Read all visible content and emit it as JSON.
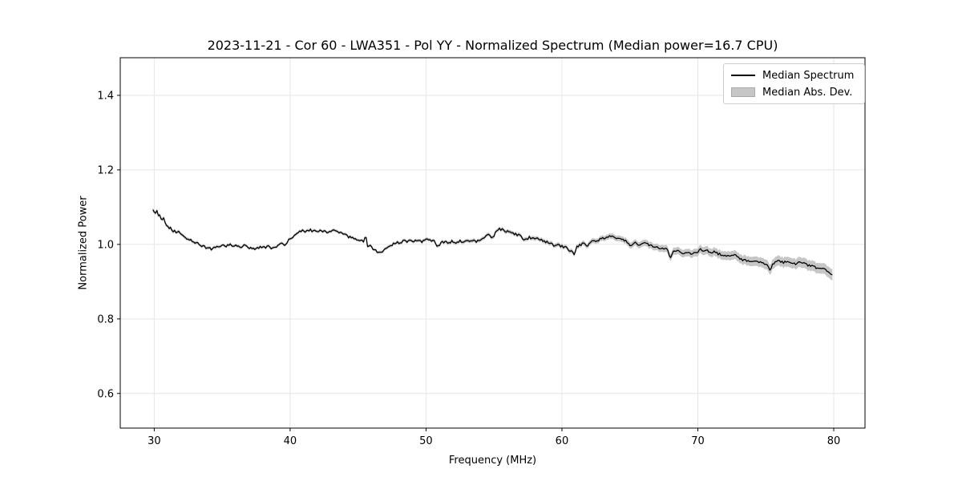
{
  "chart_data": {
    "type": "line",
    "title": "2023-11-21 - Cor 60 - LWA351 - Pol YY - Normalized Spectrum (Median power=16.7 CPU)",
    "xlabel": "Frequency (MHz)",
    "ylabel": "Normalized Power",
    "xlim": [
      27.5,
      82.3
    ],
    "ylim": [
      0.507,
      1.501
    ],
    "xticks": [
      30,
      40,
      50,
      60,
      70,
      80
    ],
    "yticks": [
      0.6,
      0.8,
      1.0,
      1.2,
      1.4
    ],
    "grid": true,
    "colors": {
      "line": "#000000",
      "band": "#c6c6c6",
      "grid": "#e6e6e6",
      "spine": "#000000",
      "tick": "#000000",
      "legend_border": "#cccccc"
    },
    "legend": {
      "position": "upper right",
      "entries": [
        {
          "label": "Median Spectrum",
          "type": "line",
          "color": "#000000"
        },
        {
          "label": "Median Abs. Dev.",
          "type": "patch",
          "color": "#c6c6c6"
        }
      ]
    },
    "noise": {
      "amplitude": 0.0032,
      "seed": 12345,
      "step_mhz": 0.1
    },
    "series": [
      {
        "name": "Median Spectrum",
        "type": "line",
        "points": [
          [
            29.9,
            1.09
          ],
          [
            29.95,
            1.097
          ],
          [
            30.0,
            1.088
          ],
          [
            30.05,
            1.095
          ],
          [
            30.1,
            1.084
          ],
          [
            30.2,
            1.089
          ],
          [
            30.3,
            1.077
          ],
          [
            30.4,
            1.08
          ],
          [
            30.5,
            1.071
          ],
          [
            30.6,
            1.065
          ],
          [
            30.7,
            1.068
          ],
          [
            30.8,
            1.057
          ],
          [
            30.9,
            1.051
          ],
          [
            31.0,
            1.046
          ],
          [
            31.1,
            1.04
          ],
          [
            31.2,
            1.043
          ],
          [
            31.35,
            1.034
          ],
          [
            31.5,
            1.038
          ],
          [
            31.65,
            1.03
          ],
          [
            31.8,
            1.033
          ],
          [
            32.0,
            1.025
          ],
          [
            32.2,
            1.02
          ],
          [
            32.5,
            1.015
          ],
          [
            32.8,
            1.01
          ],
          [
            33.1,
            1.004
          ],
          [
            33.4,
            0.999
          ],
          [
            33.7,
            0.994
          ],
          [
            33.9,
            0.99
          ],
          [
            34.2,
            0.988
          ],
          [
            34.5,
            0.991
          ],
          [
            34.8,
            0.995
          ],
          [
            35.0,
            0.998
          ],
          [
            35.3,
            0.996
          ],
          [
            35.6,
            0.999
          ],
          [
            36.0,
            0.997
          ],
          [
            36.3,
            0.993
          ],
          [
            36.6,
            0.996
          ],
          [
            37.0,
            0.992
          ],
          [
            37.3,
            0.99
          ],
          [
            37.5,
            0.987
          ],
          [
            37.8,
            0.993
          ],
          [
            38.1,
            0.991
          ],
          [
            38.4,
            0.994
          ],
          [
            38.7,
            0.99
          ],
          [
            39.0,
            0.992
          ],
          [
            39.2,
            0.998
          ],
          [
            39.45,
            1.002
          ],
          [
            39.6,
            0.998
          ],
          [
            39.8,
            1.007
          ],
          [
            40.0,
            1.015
          ],
          [
            40.3,
            1.025
          ],
          [
            40.6,
            1.033
          ],
          [
            40.9,
            1.036
          ],
          [
            41.1,
            1.032
          ],
          [
            41.3,
            1.04
          ],
          [
            41.6,
            1.037
          ],
          [
            41.9,
            1.034
          ],
          [
            42.2,
            1.038
          ],
          [
            42.5,
            1.036
          ],
          [
            42.8,
            1.033
          ],
          [
            43.1,
            1.037
          ],
          [
            43.4,
            1.034
          ],
          [
            43.7,
            1.03
          ],
          [
            44.0,
            1.027
          ],
          [
            44.3,
            1.02
          ],
          [
            44.6,
            1.017
          ],
          [
            44.9,
            1.015
          ],
          [
            45.2,
            1.011
          ],
          [
            45.45,
            1.009
          ],
          [
            45.55,
            1.026
          ],
          [
            45.7,
            0.994
          ],
          [
            45.9,
            0.997
          ],
          [
            46.1,
            0.988
          ],
          [
            46.35,
            0.981
          ],
          [
            46.6,
            0.978
          ],
          [
            46.8,
            0.982
          ],
          [
            47.0,
            0.986
          ],
          [
            47.3,
            0.993
          ],
          [
            47.6,
            1.002
          ],
          [
            47.9,
            1.007
          ],
          [
            48.1,
            1.003
          ],
          [
            48.35,
            1.009
          ],
          [
            48.6,
            1.006
          ],
          [
            48.85,
            1.012
          ],
          [
            49.1,
            1.009
          ],
          [
            49.4,
            1.013
          ],
          [
            49.7,
            1.008
          ],
          [
            50.0,
            1.014
          ],
          [
            50.3,
            1.011
          ],
          [
            50.6,
            1.013
          ],
          [
            50.85,
            0.994
          ],
          [
            51.1,
            1.004
          ],
          [
            51.3,
            1.007
          ],
          [
            51.6,
            1.003
          ],
          [
            51.9,
            1.008
          ],
          [
            52.2,
            1.005
          ],
          [
            52.5,
            1.01
          ],
          [
            52.8,
            1.007
          ],
          [
            53.1,
            1.009
          ],
          [
            53.4,
            1.011
          ],
          [
            53.7,
            1.008
          ],
          [
            54.0,
            1.011
          ],
          [
            54.3,
            1.018
          ],
          [
            54.6,
            1.026
          ],
          [
            54.8,
            1.019
          ],
          [
            55.0,
            1.023
          ],
          [
            55.15,
            1.038
          ],
          [
            55.4,
            1.042
          ],
          [
            55.7,
            1.038
          ],
          [
            56.0,
            1.034
          ],
          [
            56.3,
            1.031
          ],
          [
            56.6,
            1.027
          ],
          [
            56.9,
            1.023
          ],
          [
            57.1,
            1.016
          ],
          [
            57.35,
            1.011
          ],
          [
            57.6,
            1.019
          ],
          [
            57.9,
            1.015
          ],
          [
            58.2,
            1.017
          ],
          [
            58.5,
            1.011
          ],
          [
            58.8,
            1.007
          ],
          [
            59.1,
            1.003
          ],
          [
            59.4,
            0.996
          ],
          [
            59.7,
            0.998
          ],
          [
            60.0,
            0.995
          ],
          [
            60.3,
            0.991
          ],
          [
            60.55,
            0.985
          ],
          [
            60.75,
            0.981
          ],
          [
            60.9,
            0.971
          ],
          [
            61.1,
            0.993
          ],
          [
            61.35,
            0.999
          ],
          [
            61.6,
            1.004
          ],
          [
            61.85,
            0.996
          ],
          [
            62.1,
            1.007
          ],
          [
            62.35,
            1.01
          ],
          [
            62.6,
            1.011
          ],
          [
            62.9,
            1.015
          ],
          [
            63.2,
            1.018
          ],
          [
            63.5,
            1.021
          ],
          [
            63.8,
            1.019
          ],
          [
            64.1,
            1.015
          ],
          [
            64.4,
            1.012
          ],
          [
            64.7,
            1.01
          ],
          [
            64.9,
            1.004
          ],
          [
            65.1,
            0.995
          ],
          [
            65.4,
            1.004
          ],
          [
            65.65,
            0.999
          ],
          [
            65.9,
            1.003
          ],
          [
            66.15,
            1.005
          ],
          [
            66.4,
            0.999
          ],
          [
            66.7,
            0.996
          ],
          [
            67.0,
            0.993
          ],
          [
            67.3,
            0.99
          ],
          [
            67.6,
            0.988
          ],
          [
            67.8,
            0.984
          ],
          [
            67.95,
            0.961
          ],
          [
            68.15,
            0.979
          ],
          [
            68.4,
            0.984
          ],
          [
            68.7,
            0.98
          ],
          [
            69.0,
            0.976
          ],
          [
            69.3,
            0.979
          ],
          [
            69.6,
            0.973
          ],
          [
            69.9,
            0.978
          ],
          [
            70.15,
            0.986
          ],
          [
            70.4,
            0.983
          ],
          [
            70.65,
            0.985
          ],
          [
            70.9,
            0.978
          ],
          [
            71.2,
            0.981
          ],
          [
            71.5,
            0.975
          ],
          [
            71.8,
            0.971
          ],
          [
            72.1,
            0.968
          ],
          [
            72.4,
            0.97
          ],
          [
            72.7,
            0.973
          ],
          [
            73.0,
            0.963
          ],
          [
            73.3,
            0.959
          ],
          [
            73.6,
            0.957
          ],
          [
            73.9,
            0.952
          ],
          [
            74.2,
            0.956
          ],
          [
            74.5,
            0.952
          ],
          [
            74.8,
            0.949
          ],
          [
            75.05,
            0.946
          ],
          [
            75.3,
            0.93
          ],
          [
            75.55,
            0.948
          ],
          [
            75.8,
            0.953
          ],
          [
            76.05,
            0.956
          ],
          [
            76.3,
            0.952
          ],
          [
            76.55,
            0.956
          ],
          [
            76.8,
            0.951
          ],
          [
            77.05,
            0.948
          ],
          [
            77.3,
            0.949
          ],
          [
            77.55,
            0.954
          ],
          [
            77.8,
            0.949
          ],
          [
            78.05,
            0.945
          ],
          [
            78.3,
            0.942
          ],
          [
            78.55,
            0.939
          ],
          [
            78.8,
            0.936
          ],
          [
            79.05,
            0.935
          ],
          [
            79.3,
            0.933
          ],
          [
            79.55,
            0.927
          ],
          [
            79.75,
            0.923
          ],
          [
            79.9,
            0.917
          ]
        ]
      },
      {
        "name": "Median Abs. Dev.",
        "type": "band",
        "halfwidth": [
          [
            29.9,
            0.005
          ],
          [
            35,
            0.004
          ],
          [
            40,
            0.004
          ],
          [
            45,
            0.004
          ],
          [
            50,
            0.0045
          ],
          [
            55,
            0.005
          ],
          [
            58,
            0.0055
          ],
          [
            61,
            0.006
          ],
          [
            63,
            0.007
          ],
          [
            65,
            0.008
          ],
          [
            67,
            0.009
          ],
          [
            69,
            0.01
          ],
          [
            71,
            0.011
          ],
          [
            73,
            0.012
          ],
          [
            75,
            0.013
          ],
          [
            77,
            0.0135
          ],
          [
            79,
            0.014
          ],
          [
            80,
            0.015
          ]
        ]
      }
    ]
  }
}
